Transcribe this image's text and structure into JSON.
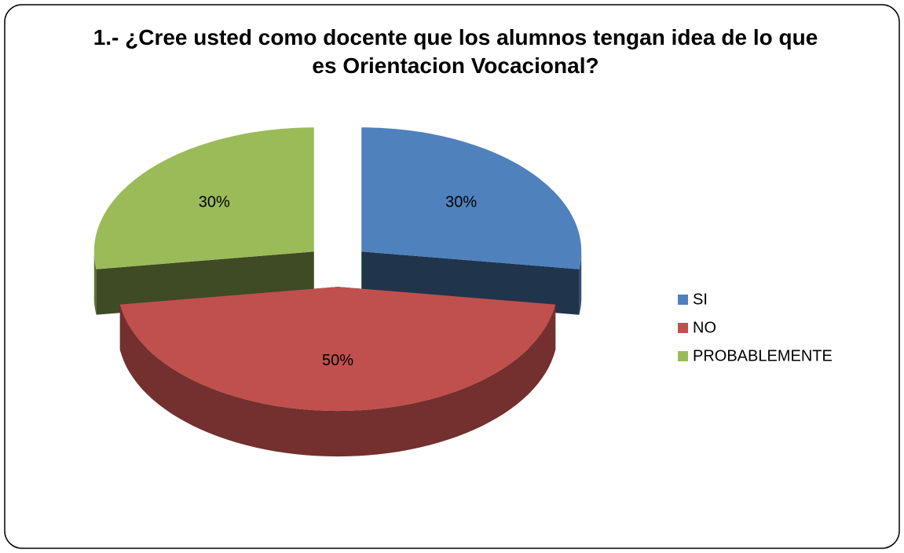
{
  "chart_data": {
    "type": "pie",
    "title": "1.- ¿Cree usted como docente que los alumnos tengan idea de lo que es Orientacion Vocacional?",
    "categories": [
      "SI",
      "NO",
      "PROBABLEMENTE"
    ],
    "values": [
      30,
      50,
      30
    ],
    "value_labels": [
      "30%",
      "50%",
      "30%"
    ],
    "colors": [
      "#4f81bd",
      "#c0504d",
      "#9bbb59"
    ],
    "legend": "right"
  }
}
